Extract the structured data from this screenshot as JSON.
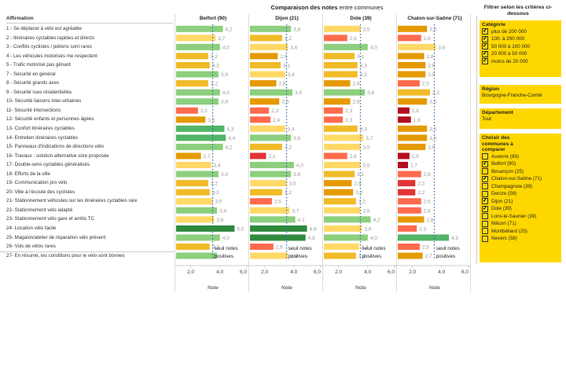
{
  "title": {
    "bold": "Comparaison des notes",
    "rest": " entre communes"
  },
  "affirmation_header": "Affirmation",
  "chart_data": {
    "type": "bar",
    "orientation": "horizontal",
    "title": "Comparaison des notes entre communes",
    "xlabel": "Note",
    "xlim": [
      1,
      6
    ],
    "xticks": [
      "2,0",
      "4,0",
      "6,0"
    ],
    "xtick_values": [
      2,
      4,
      6
    ],
    "threshold": {
      "value": 3.5,
      "label_line1": "seuil notes",
      "label_line2": "positives"
    },
    "categories": [
      "1 - Se déplacer à vélo est agréable",
      "2 - Itinéraires cyclables rapides et directs",
      "3 - Conflits cyclistes / piétons sont rares",
      "4 - Les véhicules motorisés me respectent",
      "5 - Trafic motorisé pas gênant",
      "7 - Sécurité en général",
      "8 - Sécurité grands axes",
      "9 - Sécurité rues résidentielles",
      "10- Sécurité liaisons inter-urbaines",
      "11- Sécurité intersections",
      "12- Sécurité enfants et personnes âgées",
      "13- Confort itinéraires cyclables",
      "14- Entretien itinéraires cyclables",
      "15- Panneaux d'indications de directions vélo",
      "16- Travaux : solution alternative sûre proposée",
      "17- Double-sens cyclables généralisés",
      "18- Efforts de la ville",
      "19- Communication pro vélo",
      "20- Ville à l'écoute des cyclistes",
      "21- Stationnement véhicules sur les itinéraires cyclables rare",
      "22- Stationnement vélo adapté",
      "23- Stationnement vélo gare et arrêts TC",
      "24- Location vélo facile",
      "25- Magasin/atelier de réparation vélo présent",
      "26- Vols de vélos rares",
      "27- En résumé, les conditions pour le vélo sont bonnes"
    ],
    "series": [
      {
        "name": "Belfort (90)",
        "values": [
          4.2,
          3.7,
          4.0,
          3.2,
          3.3,
          3.9,
          3.2,
          4.0,
          3.9,
          2.5,
          3.0,
          4.3,
          4.4,
          4.2,
          2.7,
          3.4,
          3.9,
          3.2,
          3.3,
          3.5,
          3.8,
          3.6,
          5.0,
          4.0,
          3.3,
          3.8
        ]
      },
      {
        "name": "Dijon (21)",
        "values": [
          3.8,
          3.2,
          3.6,
          2.9,
          3.1,
          3.4,
          2.8,
          3.9,
          3.0,
          2.3,
          2.4,
          3.4,
          3.8,
          3.2,
          2.1,
          4.0,
          3.8,
          3.5,
          3.2,
          2.5,
          3.7,
          4.1,
          4.9,
          4.8,
          2.6,
          3.6
        ]
      },
      {
        "name": "Dole (39)",
        "values": [
          3.5,
          2.6,
          4.0,
          3.1,
          3.3,
          3.3,
          2.8,
          3.8,
          2.8,
          2.3,
          2.3,
          3.3,
          3.7,
          3.5,
          2.6,
          3.5,
          3.1,
          2.9,
          3.0,
          3.2,
          3.5,
          4.2,
          3.6,
          4.0,
          3.4,
          3.2
        ]
      },
      {
        "name": "Chalon-sur-Saône (71)",
        "values": [
          3.0,
          2.6,
          3.6,
          2.8,
          2.9,
          2.9,
          2.5,
          3.2,
          3.0,
          1.8,
          1.9,
          3.0,
          3.0,
          2.9,
          1.8,
          1.7,
          2.6,
          2.2,
          2.2,
          2.6,
          2.6,
          2.8,
          2.3,
          4.5,
          2.5,
          2.7
        ]
      }
    ],
    "color_scale": {
      "below_2": "#b30e1e",
      "2_to_2.3": "#e03535",
      "2.3_to_2.7": "#ff6a4d",
      "2.7_to_3.1": "#e59a00",
      "3.1_to_3.4": "#f0bb27",
      "3.4_to_3.8": "#ffd966",
      "3.8_to_4.3": "#8ccf7e",
      "4.3_to_4.7": "#52b466",
      "above_4.7": "#2e8b3e"
    },
    "threshold_color": "#3b6ea8",
    "value_label_color": "#999999"
  },
  "sidebar": {
    "title": "Filtrer selon les critères ci-dessous",
    "categorie": {
      "title": "Catégorie",
      "items": [
        {
          "label": "plus de 200 000",
          "checked": true
        },
        {
          "label": "100. à 200 000",
          "checked": true
        },
        {
          "label": "50 000 à 100 000",
          "checked": true
        },
        {
          "label": "20 000 à 50 000",
          "checked": true
        },
        {
          "label": "moins de 20 000",
          "checked": true
        }
      ]
    },
    "region": {
      "title": "Région",
      "value": "Bourgogne-Franche-Comté"
    },
    "departement": {
      "title": "Département",
      "value": "Tout"
    },
    "communes": {
      "title": "Choisir des communes à comparer",
      "items": [
        {
          "label": "Auxerre (89)",
          "checked": false
        },
        {
          "label": "Belfort (90)",
          "checked": true
        },
        {
          "label": "Besançon (25)",
          "checked": false
        },
        {
          "label": "Chalon-sur-Saône (71)",
          "checked": true
        },
        {
          "label": "Champagnole (39)",
          "checked": false
        },
        {
          "label": "Decize (58)",
          "checked": false
        },
        {
          "label": "Dijon (21)",
          "checked": true
        },
        {
          "label": "Dole (39)",
          "checked": true
        },
        {
          "label": "Lons-le-Saunier (39)",
          "checked": false
        },
        {
          "label": "Mâcon (71)",
          "checked": false
        },
        {
          "label": "Montbéliard (25)",
          "checked": false
        },
        {
          "label": "Nevers (58)",
          "checked": false
        }
      ]
    }
  }
}
